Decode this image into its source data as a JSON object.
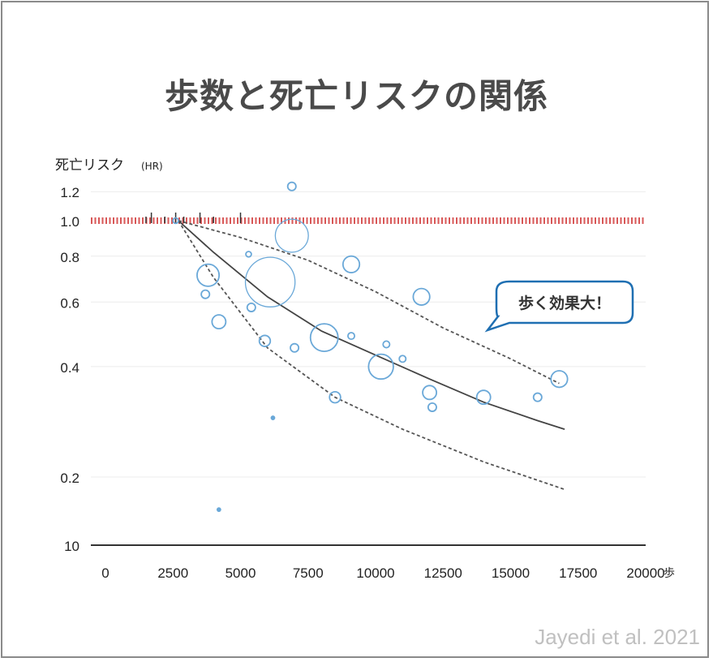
{
  "title": "歩数と死亡リスクの関係",
  "source": "Jayedi et al. 2021",
  "callout": "歩く効果大！",
  "colors": {
    "title": "#4a4a4a",
    "reference_line": "#d23c3c",
    "bubbles": "#6aa8d8",
    "curve": "#444444",
    "ci": "#555555",
    "callout_border": "#1f6fb2"
  },
  "chart_data": {
    "type": "scatter",
    "title": "",
    "xlabel": "",
    "x_unit": "歩",
    "ylabel": "死亡リスク",
    "ylabel_unit": "(HR)",
    "xlim": [
      0,
      20000
    ],
    "x_ticks": [
      0,
      2500,
      5000,
      7500,
      10000,
      12500,
      15000,
      17500,
      20000
    ],
    "y_scale": "log",
    "y_ticks": [
      0.2,
      0.4,
      0.6,
      0.8,
      1.0,
      1.2
    ],
    "y_tick_labels": [
      "0.2",
      "0.4",
      "0.6",
      "0.8",
      "1.0",
      "1.2"
    ],
    "y_bottom_label": "10",
    "reference_line": 1.0,
    "grid": true,
    "series": [
      {
        "kind": "bubbles",
        "points": [
          {
            "x": 2600,
            "y": 1.0,
            "w": 1
          },
          {
            "x": 3800,
            "y": 0.71,
            "w": 4
          },
          {
            "x": 3700,
            "y": 0.63,
            "w": 1.5
          },
          {
            "x": 4200,
            "y": 0.53,
            "w": 2.5
          },
          {
            "x": 4200,
            "y": 0.163,
            "w": 1
          },
          {
            "x": 5300,
            "y": 0.81,
            "w": 1
          },
          {
            "x": 5400,
            "y": 0.58,
            "w": 1.5
          },
          {
            "x": 5900,
            "y": 0.47,
            "w": 2
          },
          {
            "x": 6100,
            "y": 0.68,
            "w": 9
          },
          {
            "x": 6200,
            "y": 0.29,
            "w": 1
          },
          {
            "x": 6900,
            "y": 0.91,
            "w": 6
          },
          {
            "x": 6900,
            "y": 1.24,
            "w": 1.5
          },
          {
            "x": 7000,
            "y": 0.45,
            "w": 1.5
          },
          {
            "x": 8100,
            "y": 0.48,
            "w": 5
          },
          {
            "x": 8500,
            "y": 0.33,
            "w": 2
          },
          {
            "x": 9100,
            "y": 0.76,
            "w": 3
          },
          {
            "x": 9100,
            "y": 0.485,
            "w": 1.2
          },
          {
            "x": 10200,
            "y": 0.4,
            "w": 4.5
          },
          {
            "x": 10400,
            "y": 0.46,
            "w": 1.2
          },
          {
            "x": 11000,
            "y": 0.42,
            "w": 1.2
          },
          {
            "x": 11700,
            "y": 0.62,
            "w": 3
          },
          {
            "x": 12000,
            "y": 0.34,
            "w": 2.5
          },
          {
            "x": 12100,
            "y": 0.31,
            "w": 1.5
          },
          {
            "x": 14000,
            "y": 0.33,
            "w": 2.5
          },
          {
            "x": 16000,
            "y": 0.33,
            "w": 1.5
          },
          {
            "x": 16800,
            "y": 0.37,
            "w": 3
          }
        ]
      },
      {
        "kind": "curve",
        "x": [
          2700,
          4000,
          6000,
          8000,
          10000,
          12000,
          14000,
          16000,
          17000
        ],
        "y": [
          1.0,
          0.82,
          0.62,
          0.5,
          0.43,
          0.37,
          0.32,
          0.285,
          0.27
        ]
      },
      {
        "kind": "ci_upper",
        "x": [
          2700,
          5000,
          7500,
          10000,
          12500,
          15000,
          16800
        ],
        "y": [
          1.0,
          0.9,
          0.78,
          0.64,
          0.51,
          0.42,
          0.36
        ]
      },
      {
        "kind": "ci_lower",
        "x": [
          2700,
          4000,
          6000,
          8500,
          11000,
          14000,
          17000
        ],
        "y": [
          1.0,
          0.7,
          0.45,
          0.33,
          0.27,
          0.22,
          0.185
        ]
      }
    ],
    "rug_x": [
      1500,
      1700,
      2200,
      2600,
      2900,
      3500,
      4000,
      5000
    ]
  }
}
